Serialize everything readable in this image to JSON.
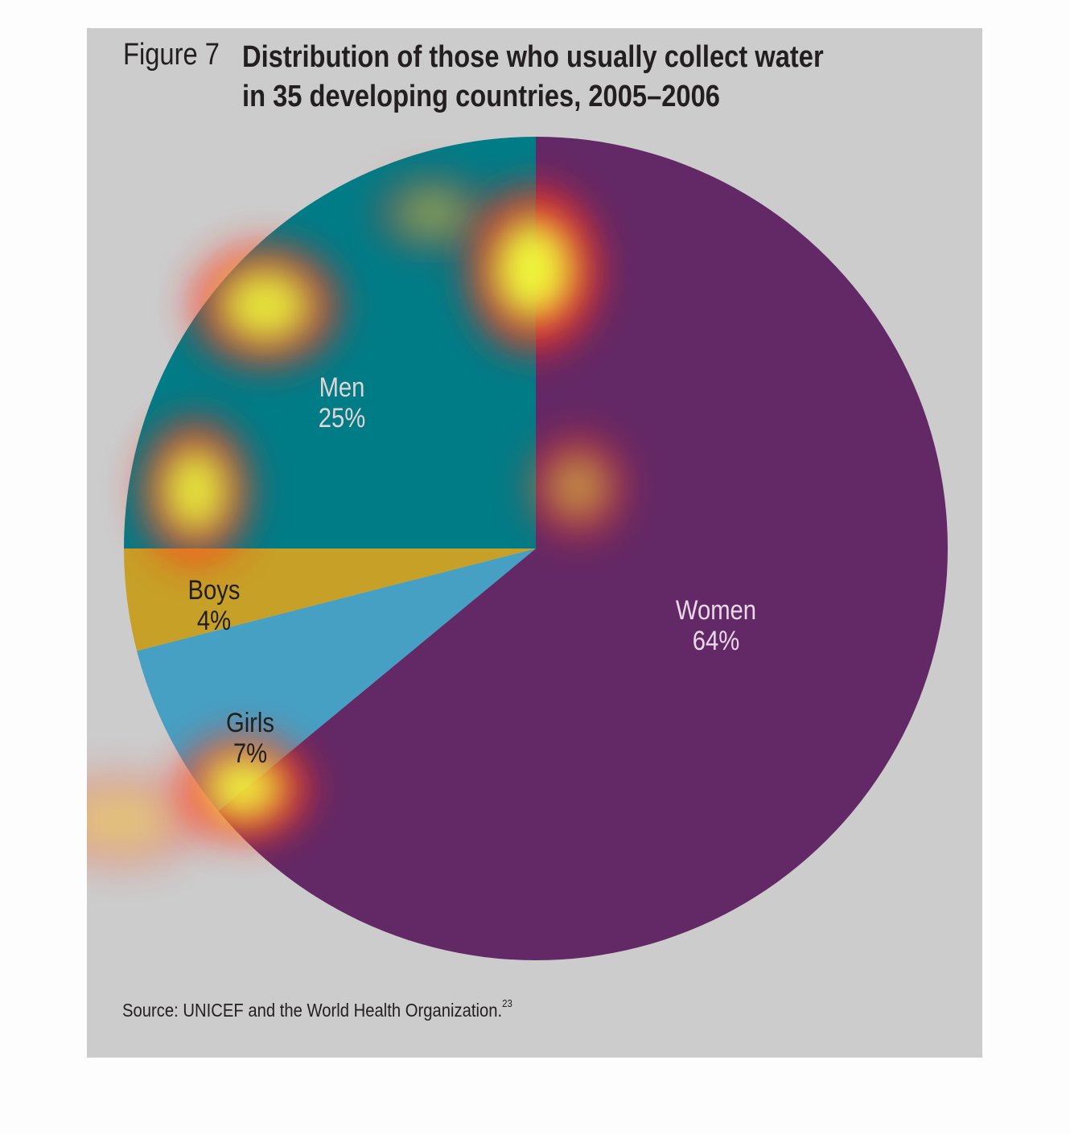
{
  "figure": {
    "label": "Figure 7",
    "title_line1": "Distribution of those who usually collect water",
    "title_line2": "in 35 developing countries, 2005–2006",
    "source": "Source: UNICEF and the World Health Organization.",
    "source_note": "23"
  },
  "chart_data": {
    "type": "pie",
    "title": "Distribution of those who usually collect water in 35 developing countries, 2005–2006",
    "slices": [
      {
        "label": "Women",
        "value": 64,
        "value_label": "64%",
        "color": "#632966",
        "label_color": "#e8d8e8"
      },
      {
        "label": "Girls",
        "value": 7,
        "value_label": "7%",
        "color": "#46a0c4",
        "label_color": "#1f1f1f"
      },
      {
        "label": "Boys",
        "value": 4,
        "value_label": "4%",
        "color": "#c7a027",
        "label_color": "#1f1f1f"
      },
      {
        "label": "Men",
        "value": 25,
        "value_label": "25%",
        "color": "#007c87",
        "label_color": "#e0d4d4"
      }
    ],
    "start_angle_deg": 0,
    "direction": "clockwise",
    "legend": "none"
  },
  "overlay": {
    "type": "attention-heatmap",
    "colors": {
      "hot": "#f2ff3a",
      "warm": "#ff2a1a"
    }
  }
}
